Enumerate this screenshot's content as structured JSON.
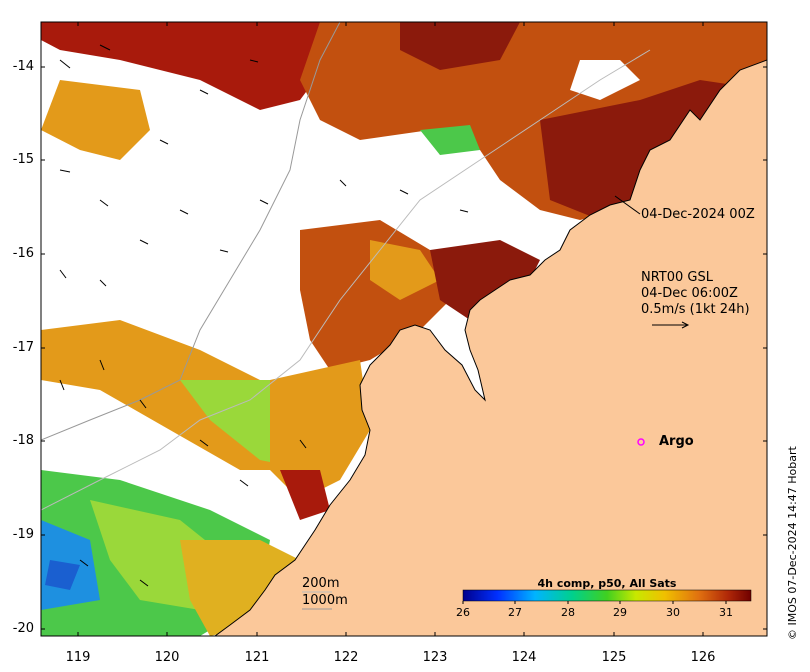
{
  "map": {
    "lat_ticks": [
      "-14",
      "-15",
      "-16",
      "-17",
      "-18",
      "-19",
      "-20"
    ],
    "lon_ticks": [
      "119",
      "120",
      "121",
      "122",
      "123",
      "124",
      "125",
      "126"
    ]
  },
  "annotations": {
    "composite_date": "04-Dec-2024 00Z",
    "current_source": "NRT00 GSL",
    "current_time": "04-Dec 06:00Z",
    "current_scale": "0.5m/s (1kt 24h)",
    "argo_label": "Argo",
    "depth_200": "200m",
    "depth_1000": "1000m"
  },
  "colorbar": {
    "title": "4h comp, p50, All Sats",
    "ticks": [
      "26",
      "27",
      "28",
      "29",
      "30",
      "31"
    ]
  },
  "credit": "© IMOS 07-Dec-2024 14:47 Hobart",
  "colors": {
    "land": "#fbc89a",
    "sst_cold": "#1a5fd0",
    "sst_mid": "#4cc84a",
    "sst_warm": "#e39a1a",
    "sst_hot": "#8b1a0c",
    "argo": "#ff00ff"
  }
}
